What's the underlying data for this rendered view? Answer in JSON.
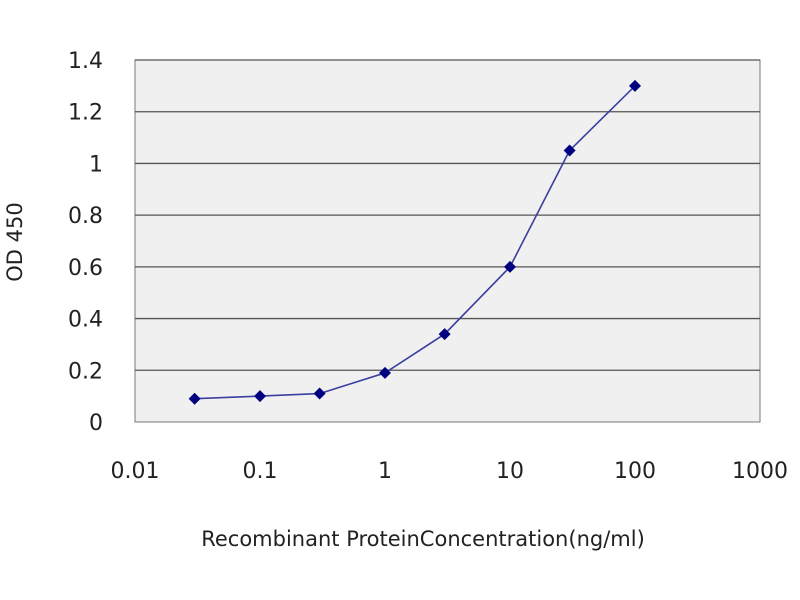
{
  "chart_data": {
    "type": "line",
    "title": "",
    "xlabel": "Recombinant ProteinConcentration(ng/ml)",
    "ylabel": "OD 450",
    "x_scale": "log",
    "xlim": [
      0.01,
      1000
    ],
    "ylim": [
      0,
      1.4
    ],
    "x_ticks": [
      "0.01",
      "0.1",
      "1",
      "10",
      "100",
      "1000"
    ],
    "y_ticks": [
      "0",
      "0.2",
      "0.4",
      "0.6",
      "0.8",
      "1",
      "1.2",
      "1.4"
    ],
    "grid": "horizontal",
    "legend": "none",
    "series": [
      {
        "x": [
          0.03,
          0.1,
          0.3,
          1,
          3,
          10,
          30,
          100
        ],
        "y": [
          0.09,
          0.1,
          0.11,
          0.19,
          0.34,
          0.6,
          1.05,
          1.3
        ]
      }
    ],
    "colors": {
      "line": "#3b3fa0",
      "marker": "#000080",
      "plot_background": "#f0f0f0",
      "grid": "#555555"
    }
  }
}
